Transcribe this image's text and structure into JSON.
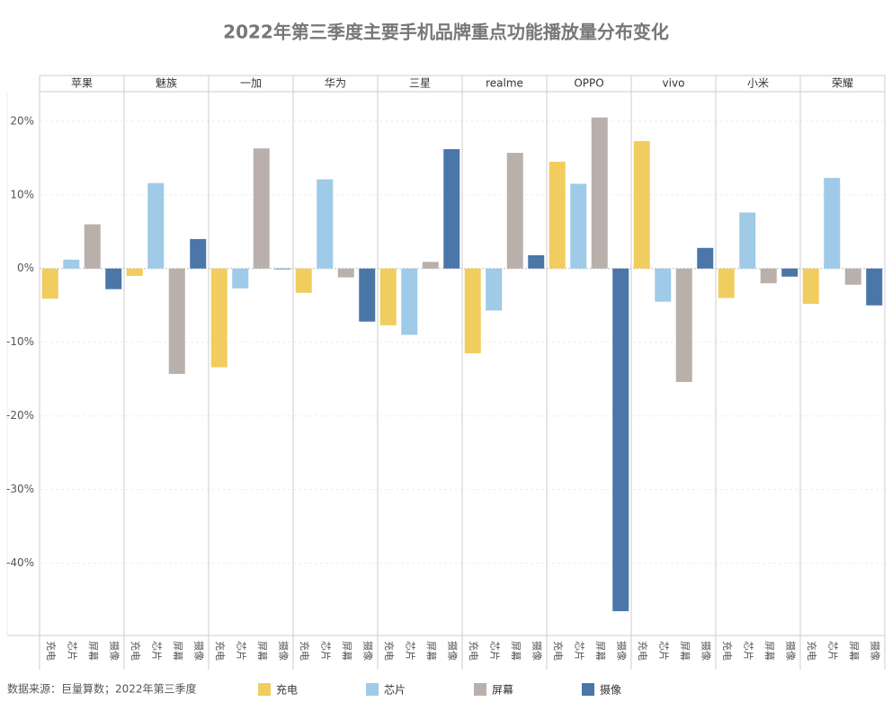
{
  "chart_data": {
    "type": "bar",
    "title": "2022年第三季度主要手机品牌重点功能播放量分布变化",
    "categories": [
      "苹果",
      "魅族",
      "一加",
      "华为",
      "三星",
      "realme",
      "OPPO",
      "vivo",
      "小米",
      "荣耀"
    ],
    "series": [
      {
        "name": "充电",
        "color": "#f1cd5f",
        "values": [
          -4.1,
          -1.0,
          -13.4,
          -3.3,
          -7.7,
          -11.5,
          14.5,
          17.3,
          -4.0,
          -4.8
        ]
      },
      {
        "name": "芯片",
        "color": "#9fcae8",
        "values": [
          1.2,
          11.6,
          -2.7,
          12.1,
          -9.0,
          -5.7,
          11.5,
          -4.5,
          7.6,
          12.3
        ]
      },
      {
        "name": "屏幕",
        "color": "#b9b0ab",
        "values": [
          6.0,
          -14.3,
          16.3,
          -1.2,
          0.9,
          15.7,
          20.5,
          -15.4,
          -2.0,
          -2.2
        ]
      },
      {
        "name": "摄像",
        "color": "#4a76a8",
        "values": [
          -2.8,
          4.0,
          -0.1,
          -7.2,
          16.2,
          1.8,
          -46.5,
          2.8,
          -1.1,
          -5.0
        ]
      }
    ],
    "ylim": [
      -49.8,
      24
    ],
    "yticks": [
      {
        "value": 20,
        "label": "20%"
      },
      {
        "value": 10,
        "label": "10%"
      },
      {
        "value": 0,
        "label": "0%"
      },
      {
        "value": -10,
        "label": "-10%"
      },
      {
        "value": -20,
        "label": "-20%"
      },
      {
        "value": -30,
        "label": "-30%"
      },
      {
        "value": -40,
        "label": "-40%"
      }
    ],
    "grid": true,
    "source": "数据来源：巨量算数；2022年第三季度"
  }
}
